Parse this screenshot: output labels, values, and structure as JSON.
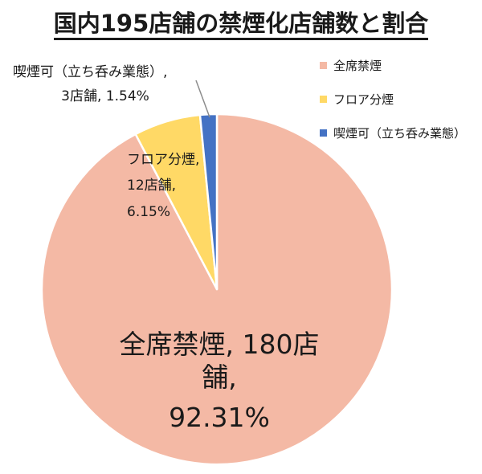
{
  "chart_data": {
    "type": "pie",
    "title": "国内195店舗の禁煙化店舗数と割合",
    "slices": [
      {
        "name": "全席禁煙",
        "value": 180,
        "percent": 92.31,
        "color": "#F4B9A5",
        "label_line1": "全席禁煙, 180店舗,",
        "label_line2": "92.31%"
      },
      {
        "name": "フロア分煙",
        "value": 12,
        "percent": 6.15,
        "color": "#FFD966",
        "label_line1": "フロア分煙,",
        "label_line2": "12店舗,",
        "label_line3": "6.15%"
      },
      {
        "name": "喫煙可（立ち呑み業態）",
        "value": 3,
        "percent": 1.54,
        "color": "#4472C4",
        "label_line1": "喫煙可（立ち呑み業態）,",
        "label_line2": "3店舗, 1.54%"
      }
    ],
    "legend_position": "top-right"
  }
}
